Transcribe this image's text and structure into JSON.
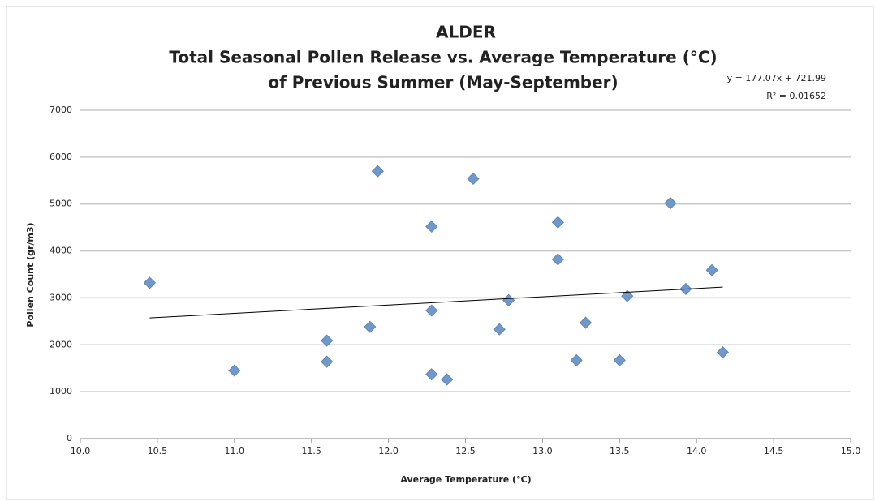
{
  "chart_data": {
    "type": "scatter",
    "title": [
      "ALDER",
      "Total Seasonal Pollen Release vs. Average Temperature (°C)",
      "of Previous Summer  (May-September)"
    ],
    "x_label": "Average Temperature (°C)",
    "y_label": "Pollen Count (gr/m3)",
    "series": [
      {
        "color": "#6f98cc",
        "x": [
          10.45,
          11.0,
          11.6,
          11.6,
          11.88,
          11.93,
          12.28,
          12.28,
          12.28,
          12.38,
          12.55,
          12.72,
          12.78,
          13.1,
          13.1,
          13.22,
          13.28,
          13.5,
          13.55,
          13.83,
          13.93,
          14.1,
          14.17
        ],
        "values": [
          3320,
          1450,
          2090,
          1640,
          2380,
          5700,
          4520,
          2730,
          1370,
          1260,
          5540,
          2330,
          2950,
          4610,
          3820,
          1670,
          2470,
          1670,
          3040,
          5020,
          3190,
          3590,
          1840
        ]
      }
    ],
    "trendline": {
      "equation": "y = 177.07x + 721.99",
      "r_squared": "R² = 0.01652",
      "slope": 177.07,
      "intercept": 721.99,
      "color": "#000000"
    },
    "xlim": [
      10.0,
      15.0
    ],
    "xticks": [
      {
        "value": 10,
        "label": "10.0"
      },
      {
        "value": 10.5,
        "label": "10.5"
      },
      {
        "value": 11,
        "label": "11.0"
      },
      {
        "value": 11.5,
        "label": "11.5"
      },
      {
        "value": 12,
        "label": "12.0"
      },
      {
        "value": 12.5,
        "label": "12.5"
      },
      {
        "value": 13,
        "label": "13.0"
      },
      {
        "value": 13.5,
        "label": "13.5"
      },
      {
        "value": 14,
        "label": "14.0"
      },
      {
        "value": 14.5,
        "label": "14.5"
      },
      {
        "value": 15,
        "label": "15.0"
      }
    ],
    "ylim": [
      0,
      7000
    ],
    "yticks": [
      0,
      1000,
      2000,
      3000,
      4000,
      5000,
      6000,
      7000
    ],
    "grid": true
  }
}
